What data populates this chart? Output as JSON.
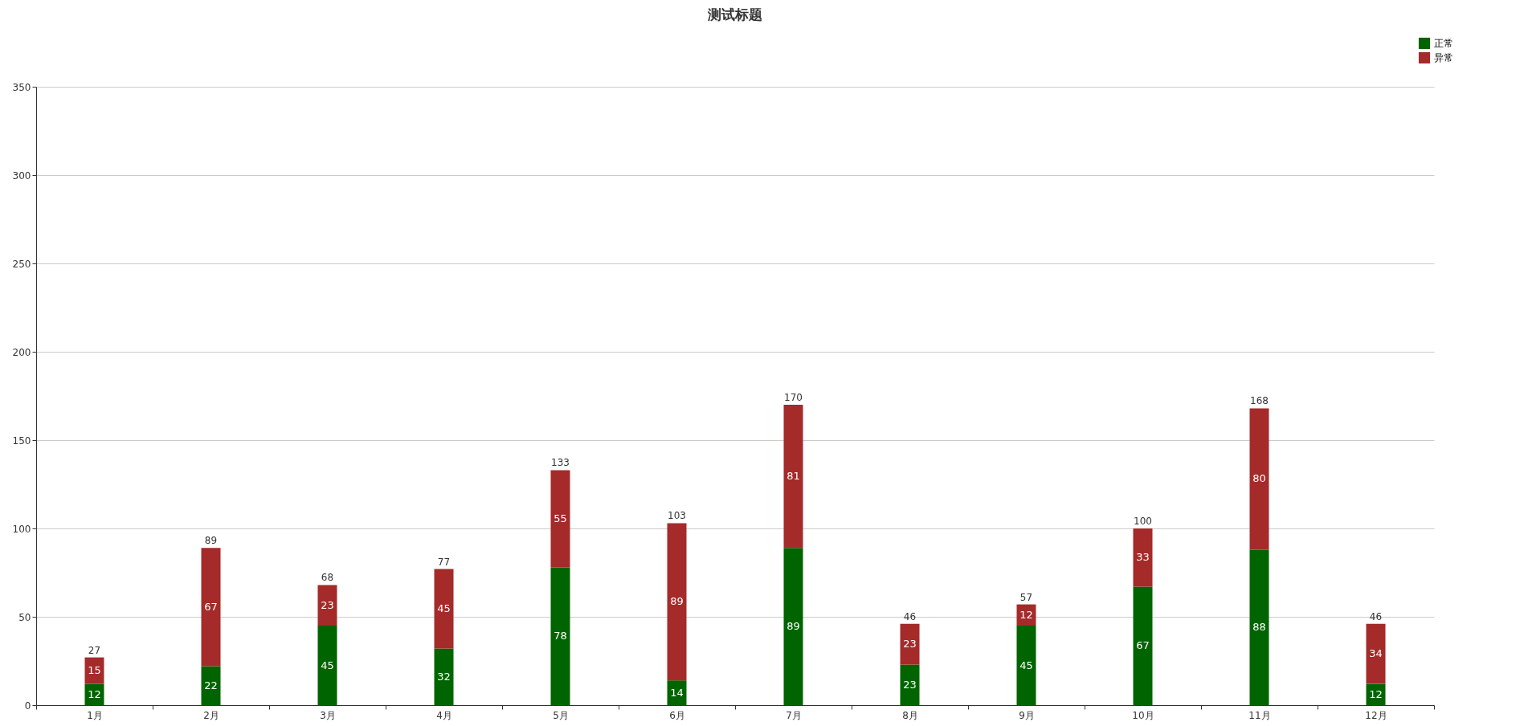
{
  "chart_data": {
    "type": "bar",
    "title": "测试标题",
    "stacked": true,
    "data_labels": true,
    "grid": "y",
    "legend": "top right",
    "categories": [
      "1月",
      "2月",
      "3月",
      "4月",
      "5月",
      "6月",
      "7月",
      "8月",
      "9月",
      "10月",
      "11月",
      "12月"
    ],
    "series": [
      {
        "name": "正常",
        "color": "#006400",
        "values": [
          12,
          22,
          45,
          32,
          78,
          14,
          89,
          23,
          45,
          67,
          88,
          12
        ]
      },
      {
        "name": "异常",
        "color": "#a52a2a",
        "values": [
          15,
          67,
          23,
          45,
          55,
          89,
          81,
          23,
          12,
          33,
          80,
          34
        ]
      }
    ],
    "totals": [
      "27",
      "89",
      "68",
      "77",
      "133",
      "103",
      "170",
      "46",
      "57",
      "100",
      "168",
      "46"
    ],
    "ylim": [
      0,
      350
    ],
    "yticks": [
      0,
      50,
      100,
      150,
      200,
      250,
      300,
      350
    ]
  }
}
